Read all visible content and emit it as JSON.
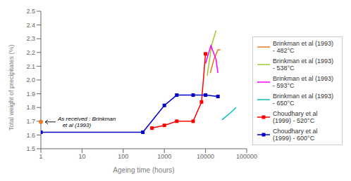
{
  "chart_data": {
    "type": "line",
    "title": "",
    "xlabel": "Ageing time (hours)",
    "ylabel": "Total weight of precipitates (%)",
    "log": "x",
    "xlim": [
      1,
      100000
    ],
    "xticks": [
      1,
      10,
      100,
      1000,
      10000,
      100000
    ],
    "ylim": [
      1.5,
      2.5
    ],
    "yticks": [
      1.5,
      1.6,
      1.7,
      1.8,
      1.9,
      {
        "value": 2.0,
        "label": "2.0"
      },
      2.1,
      2.2,
      2.3,
      2.4,
      2.5
    ],
    "grid": false,
    "legend": "right",
    "series": [
      {
        "name": "Brinkman et al (1993)\n- 482°C",
        "color": "#E87722",
        "x": [
          13000,
          16000,
          20000,
          23000
        ],
        "values": [
          2.05,
          2.15,
          2.22,
          2.22
        ],
        "marker": "none",
        "line_style": "solid"
      },
      {
        "name": "Brinkman et al (1993)\n- 538°C",
        "color": "#9ACD32",
        "x": [
          11000,
          14000,
          18000
        ],
        "values": [
          2.03,
          2.25,
          2.36
        ],
        "marker": "none",
        "line_style": "solid"
      },
      {
        "name": "Brinkman et al (1993)\n- 593°C",
        "color": "#FF00FF",
        "x": [
          10000,
          13500,
          18000,
          20000
        ],
        "values": [
          2.12,
          2.25,
          2.15,
          2.05
        ],
        "marker": "none",
        "line_style": "solid"
      },
      {
        "name": "Brinkman et al (1993)\n- 650°C",
        "color": "#00BFBF",
        "x": [
          25000,
          40000,
          55000
        ],
        "values": [
          1.71,
          1.76,
          1.8
        ],
        "marker": "none",
        "line_style": "solid"
      },
      {
        "name": "Choudhary et al\n(1999) - 520°C",
        "color": "#FF0000",
        "x": [
          500,
          1000,
          2000,
          5000,
          8000,
          10000
        ],
        "values": [
          1.65,
          1.67,
          1.7,
          1.7,
          1.84,
          2.19
        ],
        "marker": "square",
        "line_style": "solid"
      },
      {
        "name": "Choudhary et al\n(1999) - 600°C",
        "color": "#0000CC",
        "x": [
          1,
          300,
          1000,
          2000,
          5000,
          10000,
          20000
        ],
        "values": [
          1.62,
          1.62,
          1.815,
          1.89,
          1.89,
          1.89,
          1.88
        ],
        "marker": "square",
        "line_style": "solid"
      }
    ],
    "annotations": [
      {
        "text": "As received : Brinkman\n   et al (1993)",
        "x": 1.0,
        "y": 1.695,
        "color": "#E87722",
        "marker": "circle"
      }
    ]
  }
}
